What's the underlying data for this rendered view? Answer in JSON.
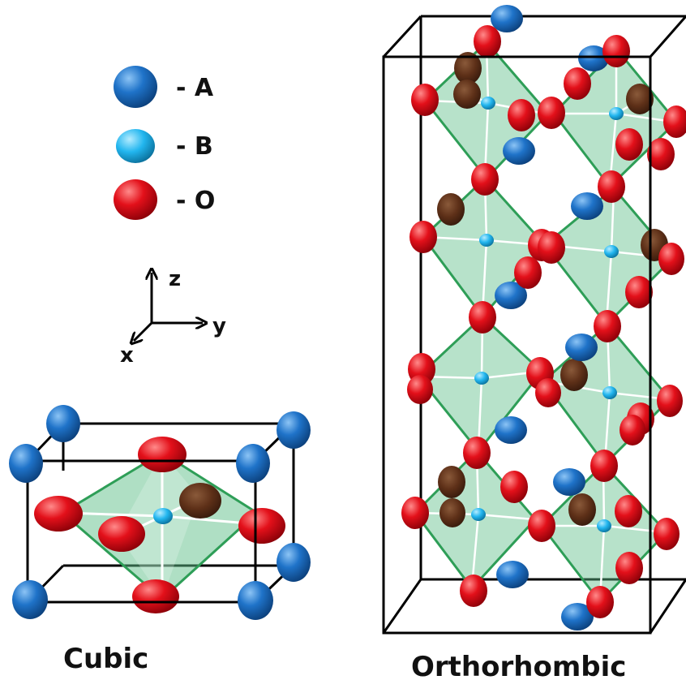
{
  "legend": {
    "items": [
      {
        "symbol": "A",
        "label": "- A",
        "color": "#1a6fc4"
      },
      {
        "symbol": "B",
        "label": "- B",
        "color": "#22b6ef"
      },
      {
        "symbol": "O",
        "label": "- O",
        "color": "#e3101a"
      }
    ]
  },
  "axes": {
    "z": "z",
    "y": "y",
    "x": "x"
  },
  "structures": {
    "cubic": {
      "caption": "Cubic"
    },
    "orthorhombic": {
      "caption": "Orthorhombic"
    }
  },
  "colors": {
    "atom_A": "#1a6fc4",
    "atom_B": "#22b6ef",
    "atom_O": "#e3101a",
    "octahedron_fill": "#5fbf8a",
    "octahedron_edge": "#2e9e57",
    "cell_edge": "#000000",
    "bond": "#ffffff"
  }
}
